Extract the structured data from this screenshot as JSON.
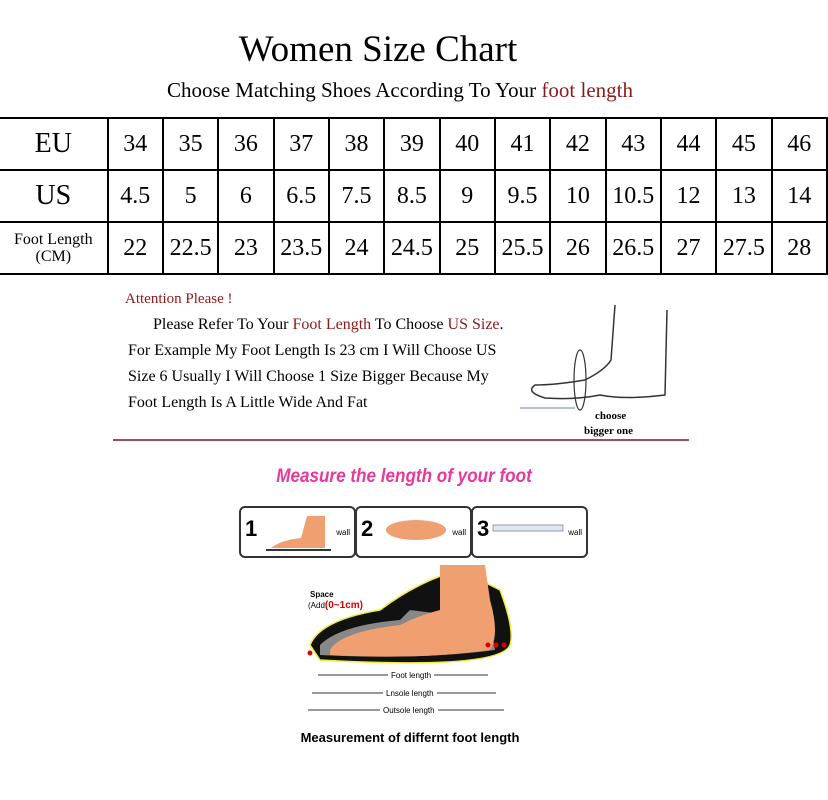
{
  "title": "Women Size Chart",
  "subtitle": {
    "prefix": "Choose Matching Shoes According To Your ",
    "highlight": "foot length"
  },
  "table": {
    "rows": [
      {
        "label": "EU",
        "values": [
          "34",
          "35",
          "36",
          "37",
          "38",
          "39",
          "40",
          "41",
          "42",
          "43",
          "44",
          "45",
          "46"
        ]
      },
      {
        "label": "US",
        "values": [
          "4.5",
          "5",
          "6",
          "6.5",
          "7.5",
          "8.5",
          "9",
          "9.5",
          "10",
          "10.5",
          "12",
          "13",
          "14"
        ]
      },
      {
        "label": "Foot Length",
        "sublabel": "(CM)",
        "values": [
          "22",
          "22.5",
          "23",
          "23.5",
          "24",
          "24.5",
          "25",
          "25.5",
          "26",
          "26.5",
          "27",
          "27.5",
          "28"
        ]
      }
    ]
  },
  "attention": {
    "heading": "Attention Please !",
    "line1": {
      "a": "Please Refer To Your ",
      "b": "Foot Length",
      "c": " To Choose ",
      "d": "US Size",
      "e": "."
    },
    "line2": "For Example My Foot Length Is 23 cm I Will Choose US",
    "line3": "Size 6 Usually I Will Choose 1 Size Bigger Because My",
    "line4": "Foot Length Is A Little Wide And Fat",
    "foot_caption1": "choose",
    "foot_caption2": "bigger one"
  },
  "measure": {
    "title": "Measure the length of your foot",
    "steps": [
      {
        "num": "1",
        "wall": "wall"
      },
      {
        "num": "2",
        "wall": "wall"
      },
      {
        "num": "3",
        "wall": "wall"
      }
    ],
    "space_label": "Space",
    "space_add": "(Add",
    "space_value": "(0~1cm)",
    "foot_length": "Foot length",
    "insole_length": "Lnsole length",
    "outsole_length": "Outsole length",
    "caption": "Measurement of differnt foot length"
  },
  "colors": {
    "accent_red": "#8b1a1a",
    "pink": "#e8389a",
    "foot": "#f0a070"
  }
}
